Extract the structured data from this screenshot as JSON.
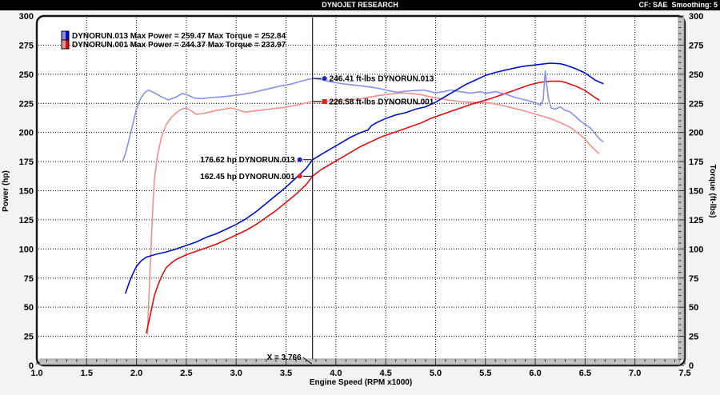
{
  "header": {
    "title": "DYNOJET RESEARCH",
    "settings": "CF: SAE  Smoothing: 5"
  },
  "legend": [
    {
      "run": "DYNORUN.013",
      "max_power": "259.47",
      "max_torque": "252.84",
      "text": "DYNORUN.013 Max Power = 259.47 Max Torque = 252.84",
      "color_dark": "#0010c8",
      "color_light": "#8890e8"
    },
    {
      "run": "DYNORUN.001",
      "max_power": "244.37",
      "max_torque": "233.97",
      "text": "DYNORUN.001 Max Power = 244.37 Max Torque = 233.97",
      "color_dark": "#d81010",
      "color_light": "#f49090"
    }
  ],
  "cursor": {
    "x": 3.766,
    "label": "X = 3.766",
    "points": [
      {
        "text": "246.41 ft-lbs DYNORUN.013",
        "value": 246.41,
        "unit": "ft-lbs",
        "run": "DYNORUN.013",
        "side": "right",
        "marker": "circle",
        "color": "#2020d0"
      },
      {
        "text": "226.58 ft-lbs DYNORUN.001",
        "value": 226.58,
        "unit": "ft-lbs",
        "run": "DYNORUN.001",
        "side": "right",
        "marker": "square",
        "color": "#e02020"
      },
      {
        "text": "176.62 hp DYNORUN.013",
        "value": 176.62,
        "unit": "hp",
        "run": "DYNORUN.013",
        "side": "left",
        "marker": "circle",
        "color": "#2020d0"
      },
      {
        "text": "162.45 hp DYNORUN.001",
        "value": 162.45,
        "unit": "hp",
        "run": "DYNORUN.001",
        "side": "left",
        "marker": "circle",
        "color": "#e02020"
      }
    ]
  },
  "chart_data": {
    "type": "line",
    "title": "DYNOJET RESEARCH",
    "xlabel": "Engine Speed (RPM x1000)",
    "ylabel_left": "Power (hp)",
    "ylabel_right": "Torque (ft-lbs)",
    "xlim": [
      1.0,
      7.5
    ],
    "ylim": [
      0,
      300
    ],
    "x_tick_step": 0.5,
    "y_tick_step": 25,
    "grid": "dotted",
    "legend_position": "top-left",
    "cursor_x": 3.766,
    "series": [
      {
        "id": "torque-dynorun001",
        "name": "DYNORUN.001 Torque",
        "unit": "ft-lbs",
        "axis": "right",
        "color": "#f49090",
        "points": [
          [
            2.11,
            27
          ],
          [
            2.12,
            50
          ],
          [
            2.14,
            90
          ],
          [
            2.16,
            130
          ],
          [
            2.18,
            160
          ],
          [
            2.21,
            180
          ],
          [
            2.25,
            196
          ],
          [
            2.3,
            207
          ],
          [
            2.35,
            213
          ],
          [
            2.4,
            217
          ],
          [
            2.45,
            220
          ],
          [
            2.5,
            221
          ],
          [
            2.55,
            218.5
          ],
          [
            2.6,
            215.5
          ],
          [
            2.68,
            216.5
          ],
          [
            2.78,
            218.5
          ],
          [
            2.88,
            220
          ],
          [
            2.95,
            221
          ],
          [
            3.0,
            220
          ],
          [
            3.05,
            218.5
          ],
          [
            3.1,
            217.5
          ],
          [
            3.18,
            218.5
          ],
          [
            3.28,
            219.5
          ],
          [
            3.38,
            220.5
          ],
          [
            3.48,
            221.5
          ],
          [
            3.58,
            223
          ],
          [
            3.68,
            225
          ],
          [
            3.766,
            226.6
          ],
          [
            3.85,
            226.5
          ],
          [
            3.95,
            227
          ],
          [
            4.05,
            227.5
          ],
          [
            4.15,
            228
          ],
          [
            4.25,
            229
          ],
          [
            4.35,
            230.5
          ],
          [
            4.45,
            232
          ],
          [
            4.55,
            233
          ],
          [
            4.65,
            233.9
          ],
          [
            4.75,
            233.5
          ],
          [
            4.85,
            232.5
          ],
          [
            4.95,
            230.5
          ],
          [
            5.05,
            229
          ],
          [
            5.15,
            227.5
          ],
          [
            5.25,
            226.5
          ],
          [
            5.35,
            226
          ],
          [
            5.45,
            225.8
          ],
          [
            5.55,
            225.3
          ],
          [
            5.65,
            223.5
          ],
          [
            5.75,
            221.5
          ],
          [
            5.85,
            219.5
          ],
          [
            5.95,
            217
          ],
          [
            6.05,
            214.5
          ],
          [
            6.15,
            212
          ],
          [
            6.25,
            208.5
          ],
          [
            6.35,
            204.5
          ],
          [
            6.42,
            200
          ],
          [
            6.48,
            196
          ],
          [
            6.54,
            190
          ],
          [
            6.6,
            185
          ],
          [
            6.64,
            182
          ]
        ]
      },
      {
        "id": "power-dynorun001",
        "name": "DYNORUN.001 Power",
        "unit": "hp",
        "axis": "left",
        "color": "#d81010",
        "points": [
          [
            2.1,
            28
          ],
          [
            2.12,
            36
          ],
          [
            2.15,
            48
          ],
          [
            2.18,
            60
          ],
          [
            2.22,
            70
          ],
          [
            2.26,
            78
          ],
          [
            2.3,
            84
          ],
          [
            2.35,
            88
          ],
          [
            2.4,
            91
          ],
          [
            2.5,
            95
          ],
          [
            2.6,
            98
          ],
          [
            2.7,
            101
          ],
          [
            2.8,
            104
          ],
          [
            2.9,
            108
          ],
          [
            3.0,
            112
          ],
          [
            3.1,
            116
          ],
          [
            3.2,
            121
          ],
          [
            3.3,
            127
          ],
          [
            3.4,
            133
          ],
          [
            3.5,
            140
          ],
          [
            3.6,
            147
          ],
          [
            3.7,
            155
          ],
          [
            3.766,
            162.5
          ],
          [
            3.85,
            168
          ],
          [
            3.95,
            173
          ],
          [
            4.05,
            178
          ],
          [
            4.15,
            183
          ],
          [
            4.25,
            188
          ],
          [
            4.35,
            192
          ],
          [
            4.45,
            196
          ],
          [
            4.55,
            199
          ],
          [
            4.65,
            202
          ],
          [
            4.75,
            205
          ],
          [
            4.85,
            208
          ],
          [
            4.95,
            212
          ],
          [
            5.05,
            215
          ],
          [
            5.15,
            218
          ],
          [
            5.25,
            221
          ],
          [
            5.35,
            224
          ],
          [
            5.45,
            226.5
          ],
          [
            5.55,
            229
          ],
          [
            5.65,
            232
          ],
          [
            5.75,
            235
          ],
          [
            5.85,
            238
          ],
          [
            5.95,
            241
          ],
          [
            6.05,
            243
          ],
          [
            6.15,
            244
          ],
          [
            6.25,
            244
          ],
          [
            6.3,
            243
          ],
          [
            6.35,
            241.5
          ],
          [
            6.4,
            240
          ],
          [
            6.45,
            238
          ],
          [
            6.5,
            236
          ],
          [
            6.55,
            233
          ],
          [
            6.6,
            230
          ],
          [
            6.64,
            228
          ]
        ]
      },
      {
        "id": "torque-dynorun013",
        "name": "DYNORUN.013 Torque",
        "unit": "ft-lbs",
        "axis": "right",
        "color": "#8890e8",
        "points": [
          [
            1.86,
            175
          ],
          [
            1.89,
            182
          ],
          [
            1.92,
            192
          ],
          [
            1.96,
            206
          ],
          [
            2.0,
            220
          ],
          [
            2.04,
            229
          ],
          [
            2.08,
            234
          ],
          [
            2.12,
            236.5
          ],
          [
            2.18,
            234
          ],
          [
            2.25,
            230.5
          ],
          [
            2.32,
            228
          ],
          [
            2.4,
            230.5
          ],
          [
            2.46,
            233.5
          ],
          [
            2.52,
            232
          ],
          [
            2.58,
            229.5
          ],
          [
            2.65,
            229
          ],
          [
            2.75,
            230
          ],
          [
            2.85,
            230.5
          ],
          [
            2.95,
            231.5
          ],
          [
            3.05,
            232.5
          ],
          [
            3.15,
            234
          ],
          [
            3.25,
            236
          ],
          [
            3.35,
            238
          ],
          [
            3.45,
            240
          ],
          [
            3.55,
            241.5
          ],
          [
            3.65,
            244
          ],
          [
            3.72,
            245.5
          ],
          [
            3.766,
            246.4
          ],
          [
            3.85,
            245.5
          ],
          [
            3.95,
            243.5
          ],
          [
            4.05,
            242
          ],
          [
            4.15,
            241
          ],
          [
            4.25,
            240
          ],
          [
            4.35,
            239
          ],
          [
            4.45,
            237.5
          ],
          [
            4.55,
            235.5
          ],
          [
            4.62,
            234.5
          ],
          [
            4.7,
            235.5
          ],
          [
            4.8,
            236
          ],
          [
            4.88,
            236.4
          ],
          [
            5.0,
            234
          ],
          [
            5.08,
            235
          ],
          [
            5.15,
            236.5
          ],
          [
            5.25,
            235
          ],
          [
            5.35,
            233.8
          ],
          [
            5.45,
            235
          ],
          [
            5.5,
            233.6
          ],
          [
            5.6,
            235
          ],
          [
            5.7,
            233
          ],
          [
            5.8,
            230
          ],
          [
            5.9,
            228
          ],
          [
            6.0,
            225.6
          ],
          [
            6.05,
            223.3
          ],
          [
            6.08,
            228
          ],
          [
            6.1,
            252.8
          ],
          [
            6.13,
            230
          ],
          [
            6.16,
            221
          ],
          [
            6.2,
            220
          ],
          [
            6.25,
            222
          ],
          [
            6.3,
            219
          ],
          [
            6.35,
            217.6
          ],
          [
            6.4,
            214
          ],
          [
            6.45,
            210
          ],
          [
            6.5,
            207
          ],
          [
            6.55,
            204
          ],
          [
            6.6,
            199
          ],
          [
            6.65,
            194
          ],
          [
            6.68,
            192
          ]
        ]
      },
      {
        "id": "power-dynorun013",
        "name": "DYNORUN.013 Power",
        "unit": "hp",
        "axis": "left",
        "color": "#0010c8",
        "points": [
          [
            1.89,
            62
          ],
          [
            1.93,
            72
          ],
          [
            1.97,
            80
          ],
          [
            2.0,
            85
          ],
          [
            2.05,
            90
          ],
          [
            2.1,
            93
          ],
          [
            2.2,
            95.5
          ],
          [
            2.3,
            97.5
          ],
          [
            2.4,
            100
          ],
          [
            2.5,
            103
          ],
          [
            2.6,
            106
          ],
          [
            2.7,
            110
          ],
          [
            2.8,
            113
          ],
          [
            2.9,
            117
          ],
          [
            3.0,
            121
          ],
          [
            3.1,
            126
          ],
          [
            3.2,
            132
          ],
          [
            3.3,
            139
          ],
          [
            3.4,
            146
          ],
          [
            3.5,
            153
          ],
          [
            3.6,
            161
          ],
          [
            3.7,
            169
          ],
          [
            3.766,
            176.6
          ],
          [
            3.85,
            181
          ],
          [
            3.95,
            186
          ],
          [
            4.05,
            191
          ],
          [
            4.15,
            196
          ],
          [
            4.25,
            200
          ],
          [
            4.32,
            202
          ],
          [
            4.36,
            206
          ],
          [
            4.42,
            209
          ],
          [
            4.5,
            212
          ],
          [
            4.6,
            215
          ],
          [
            4.7,
            217
          ],
          [
            4.8,
            220
          ],
          [
            4.9,
            222
          ],
          [
            5.0,
            226
          ],
          [
            5.1,
            231
          ],
          [
            5.2,
            236
          ],
          [
            5.3,
            241
          ],
          [
            5.4,
            245
          ],
          [
            5.5,
            249
          ],
          [
            5.6,
            251.5
          ],
          [
            5.7,
            253.5
          ],
          [
            5.8,
            255.5
          ],
          [
            5.9,
            257
          ],
          [
            6.0,
            258
          ],
          [
            6.1,
            259
          ],
          [
            6.15,
            259.5
          ],
          [
            6.25,
            259
          ],
          [
            6.3,
            258
          ],
          [
            6.35,
            256.5
          ],
          [
            6.4,
            255
          ],
          [
            6.45,
            253
          ],
          [
            6.5,
            251
          ],
          [
            6.55,
            248
          ],
          [
            6.6,
            245
          ],
          [
            6.65,
            243
          ],
          [
            6.68,
            242
          ]
        ]
      }
    ]
  }
}
